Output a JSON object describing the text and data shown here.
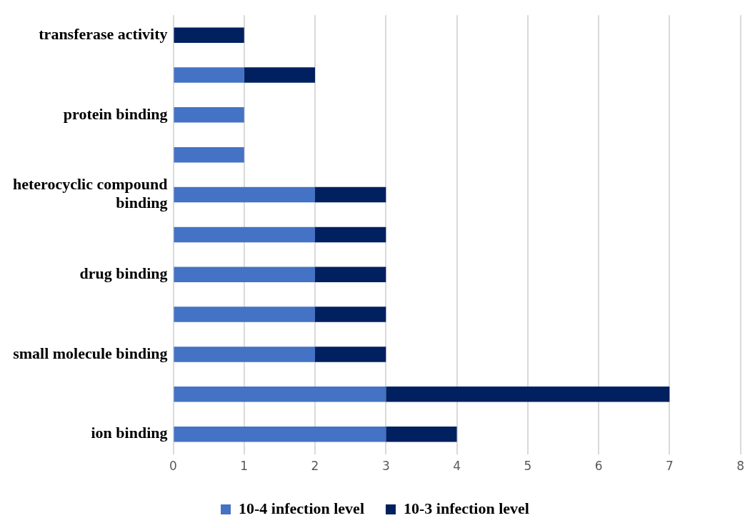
{
  "chart_data": {
    "type": "bar",
    "orientation": "horizontal",
    "stacked": true,
    "categories": [
      "transferase activity",
      null,
      "protein binding",
      null,
      "heterocyclic compound binding",
      null,
      "drug binding",
      null,
      "small molecule binding",
      null,
      "ion binding"
    ],
    "series": [
      {
        "name": "10-4 infection level",
        "color": "#4472c4",
        "values": [
          0,
          1,
          1,
          1,
          2,
          2,
          2,
          2,
          2,
          3,
          3
        ]
      },
      {
        "name": "10-3 infection level",
        "color": "#002060",
        "values": [
          1,
          1,
          0,
          0,
          1,
          1,
          1,
          1,
          1,
          4,
          1
        ]
      }
    ],
    "xlim": [
      0,
      8
    ],
    "xticks": [
      0,
      1,
      2,
      3,
      4,
      5,
      6,
      7,
      8
    ],
    "grid": "x",
    "legend": "bottom"
  }
}
